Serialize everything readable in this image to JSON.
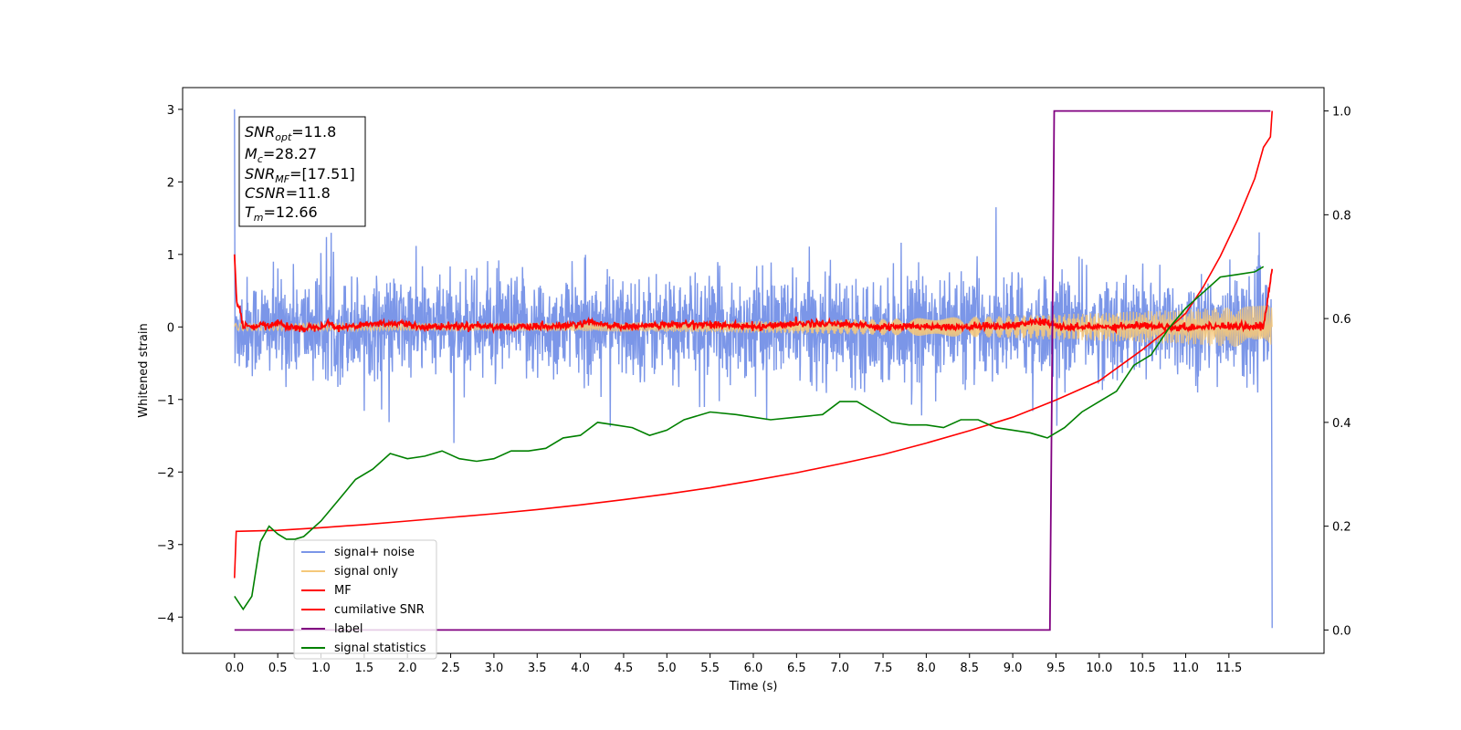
{
  "chart_data": {
    "type": "line",
    "title": "",
    "xlabel": "Time (s)",
    "ylabel": "Whitened strain",
    "y2label": "",
    "xlim": [
      -0.6,
      12.6
    ],
    "ylim": [
      -4.5,
      3.3
    ],
    "y2lim": [
      -0.045,
      1.045
    ],
    "x_ticks": [
      0.0,
      0.5,
      1.0,
      1.5,
      2.0,
      2.5,
      3.0,
      3.5,
      4.0,
      4.5,
      5.0,
      5.5,
      6.0,
      6.5,
      7.0,
      7.5,
      8.0,
      8.5,
      9.0,
      9.5,
      10.0,
      10.5,
      11.0,
      11.5
    ],
    "x_tick_labels": [
      "0.0",
      "0.5",
      "1.0",
      "1.5",
      "2.0",
      "2.5",
      "3.0",
      "3.5",
      "4.0",
      "4.5",
      "5.0",
      "5.5",
      "6.0",
      "6.5",
      "7.0",
      "7.5",
      "8.0",
      "8.5",
      "9.0",
      "9.5",
      "10.0",
      "10.5",
      "11.0",
      "11.5"
    ],
    "y_ticks": [
      3,
      2,
      1,
      0,
      -1,
      -2,
      -3,
      -4
    ],
    "y_tick_labels": [
      "3",
      "2",
      "1",
      "0",
      "−1",
      "−2",
      "−3",
      "−4"
    ],
    "y2_ticks": [
      1.0,
      0.8,
      0.6,
      0.4,
      0.2,
      0.0
    ],
    "y2_tick_labels": [
      "1.0",
      "0.8",
      "0.6",
      "0.4",
      "0.2",
      "0.0"
    ],
    "grid": false,
    "legend_position": "lower-left",
    "colors": {
      "noise": "#7b96e8",
      "signal": "#f5c87a",
      "mf": "#ff0000",
      "csnr": "#ff0000",
      "label": "#800080",
      "stats": "#008000"
    },
    "annotation": {
      "lines": [
        {
          "sym": "SNR",
          "sub": "opt",
          "value": "=11.8"
        },
        {
          "sym": "M",
          "sub": "c",
          "value": "=28.27"
        },
        {
          "sym": "SNR",
          "sub": "MF",
          "value": "=[17.51]"
        },
        {
          "sym": "CSNR",
          "sub": "",
          "value": "=11.8"
        },
        {
          "sym": "T",
          "sub": "m",
          "value": "=12.66"
        }
      ]
    },
    "series": [
      {
        "name": "signal+ noise",
        "axis": "left",
        "color": "#7b96e8",
        "generated": "noise",
        "x_range": [
          0.0,
          12.0
        ],
        "amplitude": 0.55,
        "endpoints": {
          "start": [
            0.0,
            3.0
          ],
          "end": [
            12.0,
            -4.15
          ]
        }
      },
      {
        "name": "signal only",
        "axis": "left",
        "color": "#f5c87a",
        "generated": "chirp",
        "x_range": [
          0.0,
          12.0
        ],
        "amplitude_start": 0.05,
        "amplitude_end": 0.3
      },
      {
        "name": "MF",
        "axis": "left",
        "color": "#ff0000",
        "generated": "mf",
        "x_range": [
          0.0,
          12.0
        ],
        "points": [
          [
            0.0,
            1.0
          ],
          [
            0.03,
            0.3
          ],
          [
            0.07,
            0.2
          ],
          [
            0.1,
            0.0
          ],
          [
            0.15,
            0.02
          ],
          [
            0.2,
            -0.02
          ],
          [
            0.3,
            0.03
          ],
          [
            0.4,
            0.0
          ],
          [
            0.5,
            0.08
          ],
          [
            0.6,
            0.0
          ],
          [
            0.8,
            -0.02
          ],
          [
            1.0,
            0.02
          ],
          [
            1.1,
            0.06
          ],
          [
            1.2,
            -0.02
          ],
          [
            1.5,
            0.04
          ],
          [
            1.9,
            0.05
          ],
          [
            2.2,
            0.0
          ],
          [
            2.8,
            0.02
          ],
          [
            3.2,
            -0.01
          ],
          [
            3.8,
            0.01
          ],
          [
            4.1,
            0.06
          ],
          [
            4.5,
            0.0
          ],
          [
            5.0,
            0.03
          ],
          [
            5.5,
            0.04
          ],
          [
            6.0,
            0.0
          ],
          [
            6.5,
            0.05
          ],
          [
            7.0,
            0.05
          ],
          [
            7.5,
            0.0
          ],
          [
            8.0,
            0.01
          ],
          [
            8.5,
            0.0
          ],
          [
            9.0,
            0.02
          ],
          [
            9.3,
            0.08
          ],
          [
            9.6,
            -0.01
          ],
          [
            10.0,
            0.0
          ],
          [
            10.5,
            0.02
          ],
          [
            11.0,
            -0.01
          ],
          [
            11.5,
            0.02
          ],
          [
            11.9,
            0.0
          ],
          [
            12.0,
            0.8
          ]
        ]
      },
      {
        "name": "cumilative SNR",
        "axis": "right",
        "color": "#ff0000",
        "points": [
          [
            0.0,
            0.1
          ],
          [
            0.02,
            0.19
          ],
          [
            0.5,
            0.192
          ],
          [
            1.0,
            0.197
          ],
          [
            1.5,
            0.203
          ],
          [
            2.0,
            0.21
          ],
          [
            2.5,
            0.217
          ],
          [
            3.0,
            0.224
          ],
          [
            3.5,
            0.232
          ],
          [
            4.0,
            0.241
          ],
          [
            4.5,
            0.251
          ],
          [
            5.0,
            0.262
          ],
          [
            5.5,
            0.274
          ],
          [
            6.0,
            0.288
          ],
          [
            6.5,
            0.303
          ],
          [
            7.0,
            0.32
          ],
          [
            7.5,
            0.338
          ],
          [
            8.0,
            0.36
          ],
          [
            8.5,
            0.384
          ],
          [
            9.0,
            0.41
          ],
          [
            9.5,
            0.443
          ],
          [
            10.0,
            0.48
          ],
          [
            10.5,
            0.54
          ],
          [
            10.8,
            0.58
          ],
          [
            11.0,
            0.61
          ],
          [
            11.2,
            0.66
          ],
          [
            11.4,
            0.72
          ],
          [
            11.6,
            0.79
          ],
          [
            11.8,
            0.87
          ],
          [
            11.9,
            0.93
          ],
          [
            11.98,
            0.95
          ],
          [
            12.0,
            1.0
          ]
        ]
      },
      {
        "name": "label",
        "axis": "right",
        "color": "#800080",
        "points": [
          [
            0.0,
            0.0
          ],
          [
            9.43,
            0.0
          ],
          [
            9.48,
            1.0
          ],
          [
            11.98,
            1.0
          ]
        ]
      },
      {
        "name": "signal statistics",
        "axis": "right",
        "color": "#008000",
        "points": [
          [
            0.0,
            0.065
          ],
          [
            0.1,
            0.04
          ],
          [
            0.2,
            0.065
          ],
          [
            0.3,
            0.17
          ],
          [
            0.4,
            0.2
          ],
          [
            0.5,
            0.185
          ],
          [
            0.6,
            0.175
          ],
          [
            0.7,
            0.175
          ],
          [
            0.8,
            0.18
          ],
          [
            1.0,
            0.21
          ],
          [
            1.2,
            0.25
          ],
          [
            1.4,
            0.29
          ],
          [
            1.6,
            0.31
          ],
          [
            1.8,
            0.34
          ],
          [
            2.0,
            0.33
          ],
          [
            2.2,
            0.335
          ],
          [
            2.4,
            0.345
          ],
          [
            2.6,
            0.33
          ],
          [
            2.8,
            0.325
          ],
          [
            3.0,
            0.33
          ],
          [
            3.2,
            0.345
          ],
          [
            3.4,
            0.345
          ],
          [
            3.6,
            0.35
          ],
          [
            3.8,
            0.37
          ],
          [
            4.0,
            0.375
          ],
          [
            4.2,
            0.4
          ],
          [
            4.4,
            0.395
          ],
          [
            4.6,
            0.39
          ],
          [
            4.8,
            0.375
          ],
          [
            5.0,
            0.385
          ],
          [
            5.2,
            0.405
          ],
          [
            5.5,
            0.42
          ],
          [
            5.8,
            0.415
          ],
          [
            6.0,
            0.41
          ],
          [
            6.2,
            0.405
          ],
          [
            6.5,
            0.41
          ],
          [
            6.8,
            0.415
          ],
          [
            7.0,
            0.44
          ],
          [
            7.2,
            0.44
          ],
          [
            7.4,
            0.42
          ],
          [
            7.6,
            0.4
          ],
          [
            7.8,
            0.395
          ],
          [
            8.0,
            0.395
          ],
          [
            8.2,
            0.39
          ],
          [
            8.4,
            0.405
          ],
          [
            8.6,
            0.405
          ],
          [
            8.8,
            0.39
          ],
          [
            9.0,
            0.385
          ],
          [
            9.2,
            0.38
          ],
          [
            9.4,
            0.37
          ],
          [
            9.6,
            0.39
          ],
          [
            9.8,
            0.42
          ],
          [
            10.0,
            0.44
          ],
          [
            10.2,
            0.46
          ],
          [
            10.4,
            0.51
          ],
          [
            10.6,
            0.53
          ],
          [
            10.8,
            0.58
          ],
          [
            11.0,
            0.62
          ],
          [
            11.2,
            0.65
          ],
          [
            11.4,
            0.68
          ],
          [
            11.6,
            0.685
          ],
          [
            11.8,
            0.69
          ],
          [
            11.9,
            0.7
          ]
        ]
      }
    ]
  }
}
